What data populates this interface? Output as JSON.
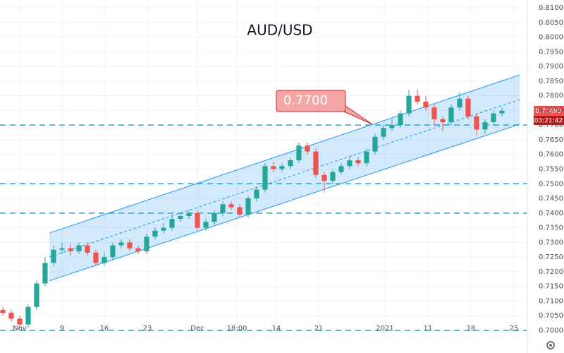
{
  "chart_data": {
    "type": "candlestick",
    "title": "AUD/USD",
    "x": [
      0,
      1,
      2,
      3,
      4,
      5,
      6,
      7,
      8,
      9,
      10,
      11,
      12,
      13,
      14,
      15,
      16,
      17,
      18,
      19,
      20,
      21,
      22,
      23,
      24,
      25,
      26,
      27,
      28,
      29,
      30,
      31,
      32,
      33,
      34,
      35,
      36,
      37,
      38,
      39,
      40,
      41,
      42,
      43,
      44,
      45,
      46,
      47,
      48,
      49,
      50,
      51,
      52,
      53,
      54,
      55,
      56,
      57,
      58,
      59
    ],
    "open": [
      0.707,
      0.706,
      0.704,
      0.702,
      0.708,
      0.716,
      0.723,
      0.7275,
      0.728,
      0.727,
      0.729,
      0.7265,
      0.723,
      0.725,
      0.729,
      0.73,
      0.728,
      0.727,
      0.732,
      0.734,
      0.735,
      0.738,
      0.739,
      0.74,
      0.735,
      0.737,
      0.74,
      0.743,
      0.742,
      0.7395,
      0.745,
      0.748,
      0.756,
      0.755,
      0.756,
      0.758,
      0.763,
      0.761,
      0.753,
      0.751,
      0.754,
      0.756,
      0.758,
      0.757,
      0.761,
      0.766,
      0.769,
      0.77,
      0.774,
      0.78,
      0.778,
      0.776,
      0.772,
      0.771,
      0.776,
      0.779,
      0.773,
      0.7685,
      0.771,
      0.774
    ],
    "high": [
      0.708,
      0.707,
      0.705,
      0.709,
      0.717,
      0.725,
      0.729,
      0.73,
      0.7295,
      0.73,
      0.73,
      0.7275,
      0.7265,
      0.73,
      0.731,
      0.731,
      0.729,
      0.733,
      0.735,
      0.7365,
      0.739,
      0.74,
      0.741,
      0.741,
      0.738,
      0.741,
      0.744,
      0.744,
      0.743,
      0.746,
      0.749,
      0.757,
      0.7575,
      0.757,
      0.759,
      0.764,
      0.764,
      0.762,
      0.754,
      0.755,
      0.757,
      0.759,
      0.759,
      0.762,
      0.767,
      0.77,
      0.772,
      0.775,
      0.782,
      0.782,
      0.78,
      0.777,
      0.773,
      0.777,
      0.781,
      0.78,
      0.774,
      0.772,
      0.775,
      0.776
    ],
    "low": [
      0.705,
      0.703,
      0.7005,
      0.701,
      0.707,
      0.715,
      0.722,
      0.726,
      0.7255,
      0.726,
      0.7255,
      0.722,
      0.722,
      0.724,
      0.728,
      0.727,
      0.726,
      0.726,
      0.731,
      0.733,
      0.734,
      0.737,
      0.738,
      0.734,
      0.734,
      0.736,
      0.739,
      0.741,
      0.7385,
      0.7385,
      0.744,
      0.747,
      0.754,
      0.754,
      0.755,
      0.757,
      0.76,
      0.752,
      0.747,
      0.75,
      0.753,
      0.755,
      0.756,
      0.756,
      0.76,
      0.765,
      0.768,
      0.769,
      0.773,
      0.777,
      0.775,
      0.77,
      0.768,
      0.77,
      0.775,
      0.772,
      0.7665,
      0.767,
      0.77,
      0.773
    ],
    "close": [
      0.706,
      0.704,
      0.702,
      0.708,
      0.716,
      0.723,
      0.7275,
      0.728,
      0.727,
      0.729,
      0.7265,
      0.723,
      0.725,
      0.729,
      0.73,
      0.728,
      0.727,
      0.732,
      0.734,
      0.735,
      0.738,
      0.739,
      0.74,
      0.735,
      0.737,
      0.74,
      0.743,
      0.742,
      0.7395,
      0.745,
      0.748,
      0.756,
      0.755,
      0.756,
      0.758,
      0.763,
      0.761,
      0.753,
      0.751,
      0.754,
      0.756,
      0.758,
      0.757,
      0.761,
      0.766,
      0.769,
      0.77,
      0.774,
      0.78,
      0.778,
      0.776,
      0.772,
      0.771,
      0.776,
      0.779,
      0.773,
      0.7685,
      0.771,
      0.774,
      0.7749
    ],
    "up_color": "#26a69a",
    "down_color": "#ef5350",
    "xlim": [
      -0.33,
      61.75
    ],
    "xticks": [
      {
        "value": 2,
        "label": "Nov"
      },
      {
        "value": 7,
        "label": "9"
      },
      {
        "value": 12,
        "label": "16"
      },
      {
        "value": 17.08,
        "label": "23"
      },
      {
        "value": 23,
        "label": "Dec"
      },
      {
        "value": 27.67,
        "label": "18:00"
      },
      {
        "value": 32.33,
        "label": "14"
      },
      {
        "value": 37.33,
        "label": "21"
      },
      {
        "value": 45.17,
        "label": "2021"
      },
      {
        "value": 50.25,
        "label": "11"
      },
      {
        "value": 55.33,
        "label": "18"
      },
      {
        "value": 60.42,
        "label": "25"
      }
    ],
    "ylim": [
      0.7,
      0.81
    ],
    "yticks": [
      {
        "value": 0.7,
        "label": "0.70000"
      },
      {
        "value": 0.705,
        "label": "0.70500"
      },
      {
        "value": 0.71,
        "label": "0.71000"
      },
      {
        "value": 0.715,
        "label": "0.71500"
      },
      {
        "value": 0.72,
        "label": "0.72000"
      },
      {
        "value": 0.725,
        "label": "0.72500"
      },
      {
        "value": 0.73,
        "label": "0.73000"
      },
      {
        "value": 0.735,
        "label": "0.73500"
      },
      {
        "value": 0.74,
        "label": "0.74000"
      },
      {
        "value": 0.745,
        "label": "0.74500"
      },
      {
        "value": 0.75,
        "label": "0.75000"
      },
      {
        "value": 0.755,
        "label": "0.75500"
      },
      {
        "value": 0.76,
        "label": "0.76000"
      },
      {
        "value": 0.765,
        "label": "0.76500"
      },
      {
        "value": 0.77,
        "label": "0.77000"
      },
      {
        "value": 0.775,
        "label": "0.77500"
      },
      {
        "value": 0.78,
        "label": "0.78000"
      },
      {
        "value": 0.785,
        "label": "0.78500"
      },
      {
        "value": 0.79,
        "label": "0.79000"
      },
      {
        "value": 0.795,
        "label": "0.79500"
      },
      {
        "value": 0.8,
        "label": "0.80000"
      },
      {
        "value": 0.805,
        "label": "0.80500"
      },
      {
        "value": 0.81,
        "label": "0.81000"
      }
    ],
    "grid": true,
    "levels": [
      0.77,
      0.75,
      0.74,
      0.7
    ],
    "level_color": "#26a3c9",
    "channel": {
      "x": [
        5.5,
        61.1
      ],
      "upper": [
        0.7332,
        0.7871
      ],
      "lower": [
        0.7169,
        0.7703
      ],
      "color": "#2196f3"
    },
    "annotation": "0.7700",
    "last_price": "0.77493",
    "countdown": "03:21:42"
  }
}
